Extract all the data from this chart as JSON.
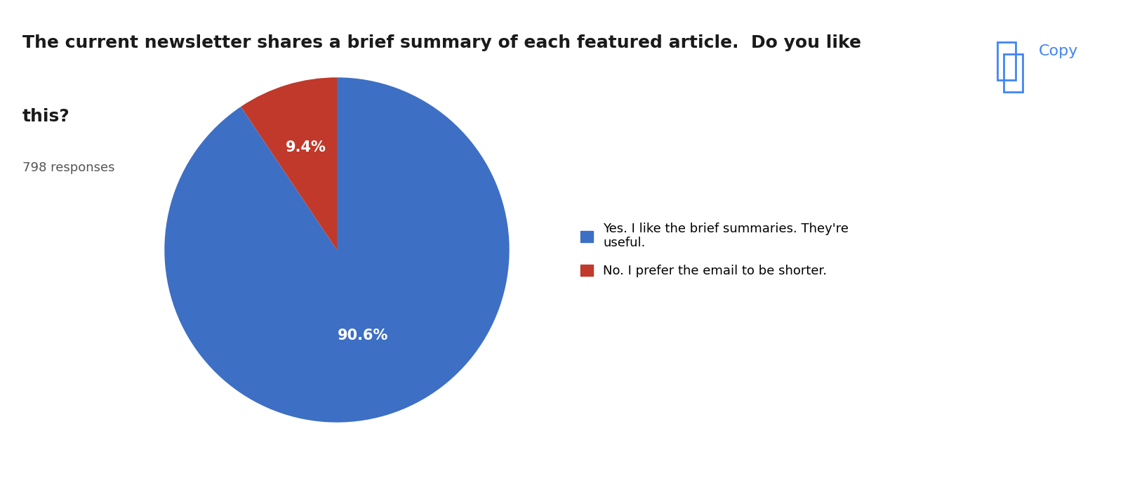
{
  "title_line1": "The current newsletter shares a brief summary of each featured article.  Do you like",
  "title_line2": "this?",
  "responses": "798 responses",
  "slices": [
    90.6,
    9.4
  ],
  "labels": [
    "90.6%",
    "9.4%"
  ],
  "colors": [
    "#3d6fc4",
    "#c0392b"
  ],
  "legend_labels": [
    "Yes. I like the brief summaries. They're\nuseful.",
    "No. I prefer the email to be shorter."
  ],
  "legend_colors": [
    "#3d6fc4",
    "#c0392b"
  ],
  "copy_text": "Copy",
  "copy_color": "#4285f4",
  "background_color": "#ffffff",
  "title_fontsize": 18,
  "responses_fontsize": 13,
  "label_fontsize": 15,
  "legend_fontsize": 13,
  "startangle": 90
}
